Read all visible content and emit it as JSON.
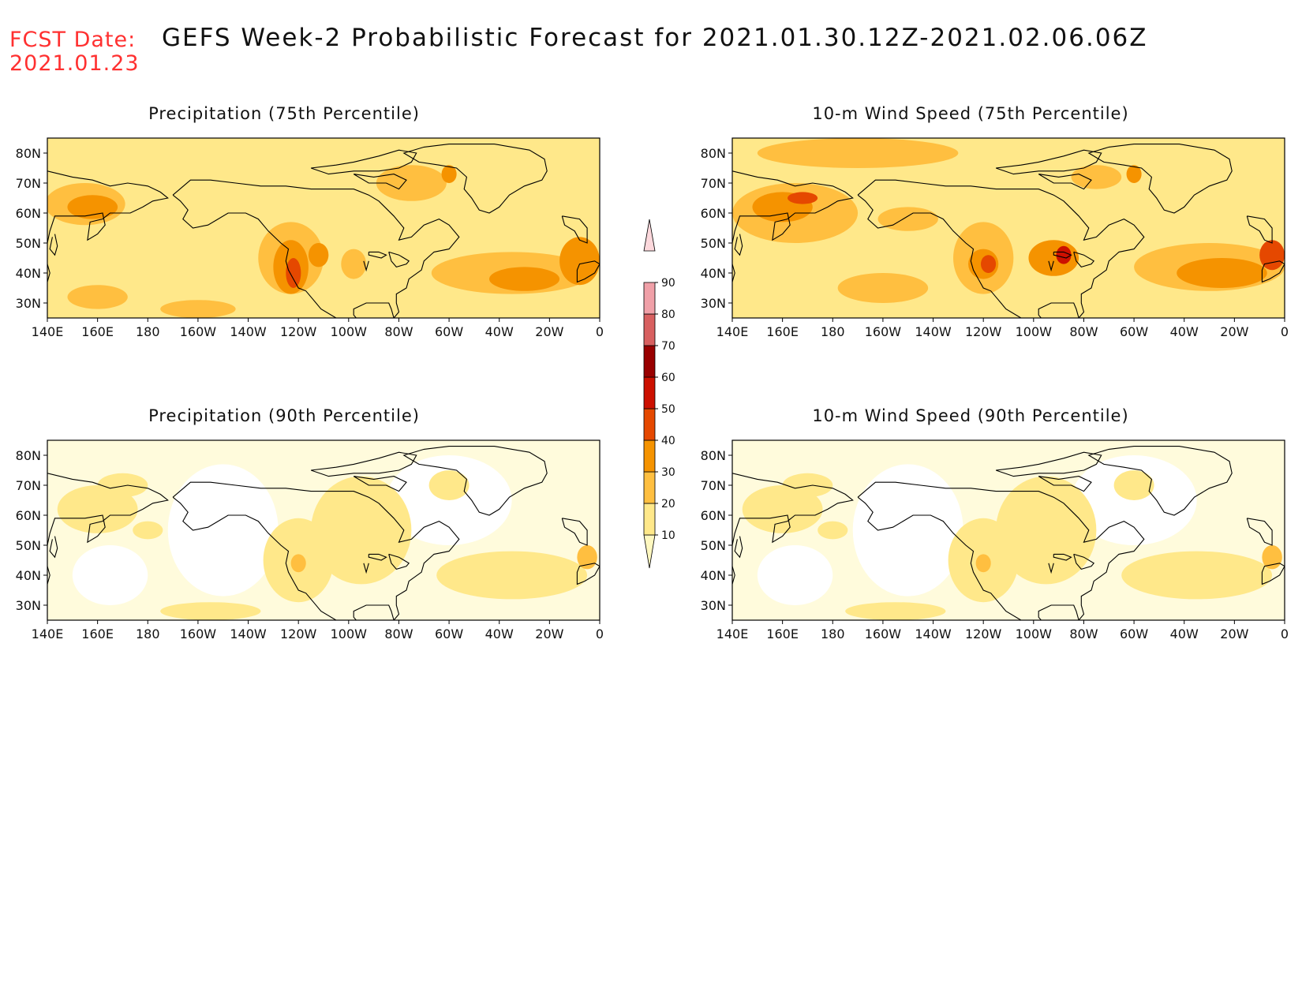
{
  "header": {
    "fcst_label": "FCST Date:",
    "fcst_date": "2021.01.23",
    "title": "GEFS Week-2 Probabilistic Forecast for 2021.01.30.12Z-2021.02.06.06Z"
  },
  "axes": {
    "lat_labels": [
      "80N",
      "70N",
      "60N",
      "50N",
      "40N",
      "30N"
    ],
    "lat_values": [
      80,
      70,
      60,
      50,
      40,
      30
    ],
    "lon_labels": [
      "140E",
      "160E",
      "180",
      "160W",
      "140W",
      "120W",
      "100W",
      "80W",
      "60W",
      "40W",
      "20W",
      "0"
    ],
    "lon_range": [
      140,
      360
    ],
    "lat_range": [
      25,
      85
    ]
  },
  "panels": [
    {
      "id": "precip75",
      "title": "Precipitation (75th Percentile)",
      "intensity": "moderate"
    },
    {
      "id": "wind75",
      "title": "10-m Wind Speed (75th Percentile)",
      "intensity": "high"
    },
    {
      "id": "precip90",
      "title": "Precipitation (90th Percentile)",
      "intensity": "low"
    },
    {
      "id": "wind90",
      "title": "10-m Wind Speed (90th Percentile)",
      "intensity": "low"
    }
  ],
  "colorbar": {
    "levels": [
      "10",
      "20",
      "30",
      "40",
      "50",
      "60",
      "70",
      "80",
      "90"
    ],
    "colors": [
      "#fff8c0",
      "#ffe88a",
      "#ffbf40",
      "#f59300",
      "#e54800",
      "#cc1000",
      "#990000",
      "#d86060",
      "#f0a0a8",
      "#fcd8dc"
    ]
  },
  "colors": {
    "coastline": "#000000",
    "fcst_text": "#ff3030"
  }
}
